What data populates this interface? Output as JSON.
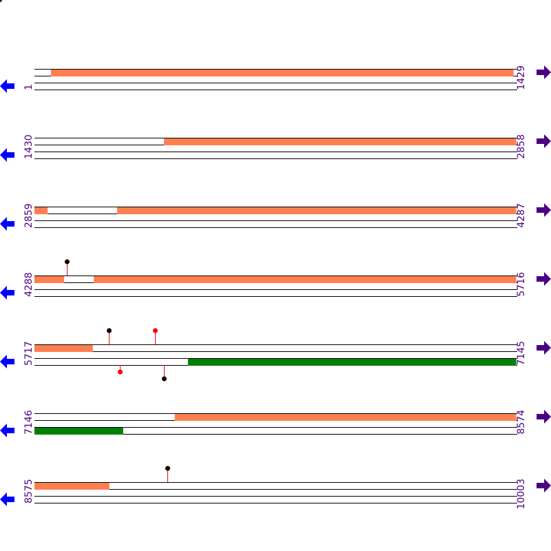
{
  "colors": {
    "forward_feature": "#ff7f50",
    "reverse_feature": "#008000",
    "strand_line": "#000000",
    "left_arrow": "#0000ff",
    "right_arrow": "#4b0082",
    "label": "#4b0082",
    "stem": "#ff0000",
    "marker_black": "#000000",
    "marker_red": "#ff0000"
  },
  "icons": {
    "left": "arrow-left-icon",
    "right": "arrow-right-icon"
  },
  "bp_per_row": 1429,
  "rows": [
    {
      "start": "1",
      "end": "1429",
      "top": [
        [
          50,
          1421
        ]
      ],
      "bottom": [],
      "markers": []
    },
    {
      "start": "1430",
      "end": "2858",
      "top": [
        [
          1814,
          2858
        ]
      ],
      "bottom": [],
      "markers": []
    },
    {
      "start": "2859",
      "end": "4287",
      "top": [
        [
          2859,
          2898
        ],
        [
          3104,
          4287
        ]
      ],
      "bottom": [],
      "markers": []
    },
    {
      "start": "4288",
      "end": "5716",
      "top": [
        [
          4288,
          4376
        ],
        [
          4464,
          5716
        ]
      ],
      "bottom": [],
      "markers": [
        {
          "pos": 4384,
          "strand": "top",
          "color": "black"
        }
      ]
    },
    {
      "start": "5717",
      "end": "7145",
      "top": [
        [
          5717,
          5890
        ]
      ],
      "bottom": [
        [
          6172,
          7145
        ]
      ],
      "markers": [
        {
          "pos": 5937,
          "strand": "top",
          "color": "black"
        },
        {
          "pos": 6074,
          "strand": "top",
          "color": "red"
        },
        {
          "pos": 5970,
          "strand": "bottom",
          "color": "red"
        },
        {
          "pos": 6101,
          "strand": "bottom",
          "color": "black"
        }
      ]
    },
    {
      "start": "7146",
      "end": "8574",
      "top": [
        [
          7562,
          8574
        ]
      ],
      "bottom": [
        [
          7146,
          7409
        ]
      ],
      "markers": []
    },
    {
      "start": "8575",
      "end": "10003",
      "top": [
        [
          8575,
          8797
        ]
      ],
      "bottom": [],
      "markers": [
        {
          "pos": 8969,
          "strand": "top",
          "color": "black"
        }
      ]
    }
  ]
}
